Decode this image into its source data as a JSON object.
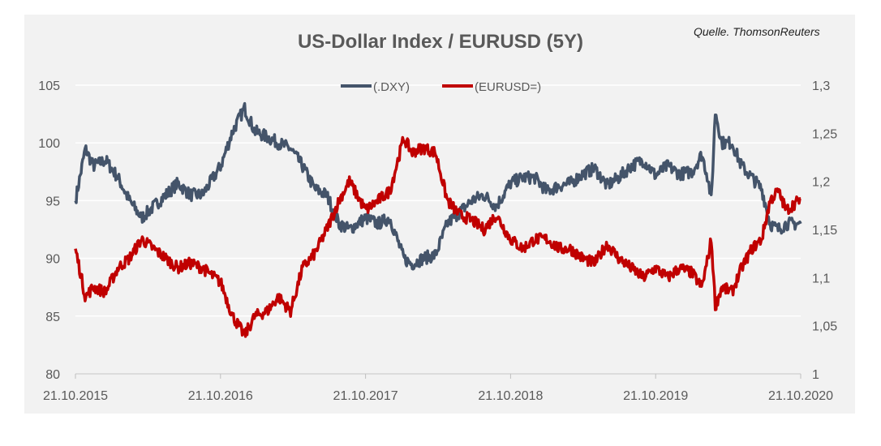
{
  "title": "US-Dollar Index / EURUSD (5Y)",
  "source": "Quelle. ThomsonReuters",
  "colors": {
    "dxy": "#44546a",
    "eurusd": "#c00000",
    "background": "#f2f2f2",
    "grid": "#ffffff"
  },
  "chart_data": {
    "type": "line",
    "title": "US-Dollar Index / EURUSD (5Y)",
    "x_ticks": [
      "21.10.2015",
      "21.10.2016",
      "21.10.2017",
      "21.10.2018",
      "21.10.2019",
      "21.10.2020"
    ],
    "y_left": {
      "ticks": [
        "80",
        "85",
        "90",
        "95",
        "100",
        "105"
      ],
      "lim": [
        80,
        105
      ]
    },
    "y_right": {
      "ticks": [
        "1",
        "1,05",
        "1,1",
        "1,15",
        "1,2",
        "1,25",
        "1,3"
      ],
      "lim": [
        1.0,
        1.3
      ]
    },
    "legend": {
      "placement": "top-center",
      "entries": [
        "(.DXY)",
        "(EURUSD=)"
      ]
    },
    "grid": true,
    "series": [
      {
        "name": "(.DXY)",
        "axis": "left",
        "color": "#44546a",
        "x": [
          "2015-10-21",
          "2015-11-15",
          "2015-12-05",
          "2016-01-05",
          "2016-02-05",
          "2016-03-05",
          "2016-04-05",
          "2016-05-05",
          "2016-06-05",
          "2016-07-05",
          "2016-08-05",
          "2016-09-05",
          "2016-10-21",
          "2016-11-20",
          "2016-12-20",
          "2017-01-15",
          "2017-02-15",
          "2017-03-15",
          "2017-04-15",
          "2017-05-15",
          "2017-06-15",
          "2017-07-15",
          "2017-08-15",
          "2017-09-10",
          "2017-10-21",
          "2017-11-21",
          "2017-12-21",
          "2018-01-25",
          "2018-02-15",
          "2018-03-15",
          "2018-04-15",
          "2018-05-15",
          "2018-06-15",
          "2018-07-15",
          "2018-08-15",
          "2018-09-15",
          "2018-10-21",
          "2018-11-21",
          "2018-12-21",
          "2019-01-21",
          "2019-02-21",
          "2019-03-21",
          "2019-04-21",
          "2019-05-21",
          "2019-06-21",
          "2019-07-21",
          "2019-08-21",
          "2019-09-21",
          "2019-10-21",
          "2019-11-21",
          "2019-12-21",
          "2020-01-21",
          "2020-02-15",
          "2020-03-01",
          "2020-03-10",
          "2020-03-20",
          "2020-04-05",
          "2020-05-01",
          "2020-05-25",
          "2020-06-20",
          "2020-07-15",
          "2020-08-05",
          "2020-08-25",
          "2020-09-15",
          "2020-10-21"
        ],
        "y": [
          95,
          99.5,
          98,
          98.5,
          97,
          95,
          93.5,
          94.5,
          95.5,
          96.5,
          95.5,
          95.5,
          98,
          101,
          103,
          101,
          100.5,
          100,
          99.5,
          98,
          96,
          95.5,
          93,
          92.5,
          93.5,
          93,
          93.5,
          90,
          89.5,
          90,
          90.3,
          93,
          94,
          95,
          95.5,
          94.5,
          96.5,
          97,
          97,
          95.8,
          96.3,
          96.5,
          97.3,
          97.8,
          96.3,
          97,
          98,
          98.5,
          97.2,
          98,
          97.3,
          97.5,
          99,
          97,
          95,
          102.8,
          100,
          100,
          98,
          97,
          96,
          93,
          92.5,
          93,
          93
        ]
      },
      {
        "name": "(EURUSD=)",
        "axis": "right",
        "color": "#c00000",
        "x": [
          "2015-10-21",
          "2015-11-15",
          "2015-12-05",
          "2016-01-05",
          "2016-02-05",
          "2016-03-05",
          "2016-04-05",
          "2016-05-05",
          "2016-06-05",
          "2016-07-05",
          "2016-08-05",
          "2016-09-05",
          "2016-10-21",
          "2016-11-20",
          "2016-12-20",
          "2017-01-15",
          "2017-02-15",
          "2017-03-15",
          "2017-04-15",
          "2017-05-15",
          "2017-06-15",
          "2017-07-15",
          "2017-08-15",
          "2017-09-10",
          "2017-10-21",
          "2017-11-21",
          "2017-12-21",
          "2018-01-25",
          "2018-02-15",
          "2018-03-15",
          "2018-04-15",
          "2018-05-15",
          "2018-06-15",
          "2018-07-15",
          "2018-08-15",
          "2018-09-15",
          "2018-10-21",
          "2018-11-21",
          "2018-12-21",
          "2019-01-21",
          "2019-02-21",
          "2019-03-21",
          "2019-04-21",
          "2019-05-21",
          "2019-06-21",
          "2019-07-21",
          "2019-08-21",
          "2019-09-21",
          "2019-10-21",
          "2019-11-21",
          "2019-12-21",
          "2020-01-21",
          "2020-02-15",
          "2020-03-01",
          "2020-03-10",
          "2020-03-20",
          "2020-04-05",
          "2020-05-01",
          "2020-05-25",
          "2020-06-20",
          "2020-07-15",
          "2020-08-05",
          "2020-08-25",
          "2020-09-15",
          "2020-10-21"
        ],
        "y": [
          1.13,
          1.08,
          1.09,
          1.085,
          1.11,
          1.12,
          1.14,
          1.13,
          1.12,
          1.11,
          1.115,
          1.11,
          1.095,
          1.06,
          1.04,
          1.06,
          1.065,
          1.08,
          1.065,
          1.11,
          1.125,
          1.15,
          1.18,
          1.2,
          1.17,
          1.18,
          1.19,
          1.245,
          1.23,
          1.235,
          1.23,
          1.18,
          1.165,
          1.16,
          1.15,
          1.165,
          1.14,
          1.13,
          1.14,
          1.14,
          1.13,
          1.13,
          1.12,
          1.115,
          1.135,
          1.12,
          1.11,
          1.1,
          1.11,
          1.1,
          1.11,
          1.105,
          1.09,
          1.12,
          1.14,
          1.07,
          1.09,
          1.085,
          1.11,
          1.13,
          1.14,
          1.18,
          1.19,
          1.17,
          1.182
        ]
      }
    ]
  }
}
